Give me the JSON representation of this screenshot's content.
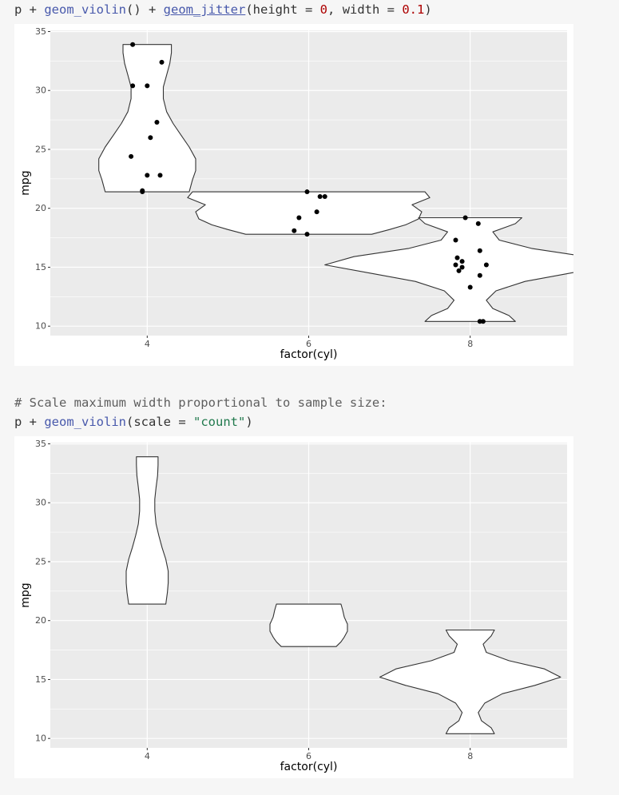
{
  "code1": {
    "p": "p",
    "plus1": " + ",
    "fn1": "geom_violin",
    "paren1": "()",
    "plus2": " + ",
    "fn2": "geom_jitter",
    "open": "(",
    "arg1": "height = ",
    "val1": "0",
    "comma": ", ",
    "arg2": "width = ",
    "val2": "0.1",
    "close": ")"
  },
  "code2": {
    "comment": "# Scale maximum width proportional to sample size:",
    "p": "p",
    "plus": " + ",
    "fn": "geom_violin",
    "open": "(",
    "arg": "scale = ",
    "val": "\"count\"",
    "close": ")"
  },
  "colors": {
    "panel": "#EBEBEB",
    "grid": "#FFFFFF",
    "violin_fill": "#FFFFFF",
    "violin_stroke": "#333333",
    "point": "#000000"
  },
  "chart_data": [
    {
      "type": "violin",
      "xlabel": "factor(cyl)",
      "ylabel": "mpg",
      "categories": [
        "4",
        "6",
        "8"
      ],
      "y_ticks": [
        "10",
        "15",
        "20",
        "25",
        "30",
        "35"
      ],
      "ylim": [
        9.2,
        35.1
      ],
      "grid": true,
      "violins": [
        {
          "category": "4",
          "ymin": 21.4,
          "ymax": 33.9,
          "profile": [
            [
              21.4,
              0.26
            ],
            [
              22.4,
              0.28
            ],
            [
              23.2,
              0.3
            ],
            [
              24.2,
              0.3
            ],
            [
              25.2,
              0.26
            ],
            [
              26.2,
              0.21
            ],
            [
              27.2,
              0.16
            ],
            [
              28.2,
              0.12
            ],
            [
              29.3,
              0.1
            ],
            [
              30.3,
              0.1
            ],
            [
              31.3,
              0.12
            ],
            [
              32.3,
              0.14
            ],
            [
              33.2,
              0.15
            ],
            [
              33.9,
              0.15
            ]
          ]
        },
        {
          "category": "6",
          "ymin": 17.8,
          "ymax": 21.4,
          "profile": [
            [
              17.8,
              0.39
            ],
            [
              18.2,
              0.5
            ],
            [
              18.6,
              0.6
            ],
            [
              19.1,
              0.68
            ],
            [
              19.7,
              0.7
            ],
            [
              20.3,
              0.64
            ],
            [
              20.9,
              0.75
            ],
            [
              21.4,
              0.72
            ]
          ]
        },
        {
          "category": "8",
          "ymin": 10.4,
          "ymax": 19.2,
          "profile": [
            [
              10.4,
              0.28
            ],
            [
              10.9,
              0.24
            ],
            [
              11.5,
              0.14
            ],
            [
              12.2,
              0.1
            ],
            [
              13.0,
              0.16
            ],
            [
              13.8,
              0.34
            ],
            [
              14.5,
              0.62
            ],
            [
              15.2,
              0.9
            ],
            [
              15.9,
              0.72
            ],
            [
              16.6,
              0.38
            ],
            [
              17.3,
              0.18
            ],
            [
              18.0,
              0.14
            ],
            [
              18.7,
              0.28
            ],
            [
              19.2,
              0.32
            ]
          ]
        }
      ],
      "points": [
        {
          "x": "4",
          "jx": -0.09,
          "y": 33.9
        },
        {
          "x": "4",
          "jx": 0.09,
          "y": 32.4
        },
        {
          "x": "4",
          "jx": -0.09,
          "y": 30.4
        },
        {
          "x": "4",
          "jx": 0.0,
          "y": 30.4
        },
        {
          "x": "4",
          "jx": 0.06,
          "y": 27.3
        },
        {
          "x": "4",
          "jx": 0.02,
          "y": 26.0
        },
        {
          "x": "4",
          "jx": -0.1,
          "y": 24.4
        },
        {
          "x": "4",
          "jx": 0.0,
          "y": 22.8
        },
        {
          "x": "4",
          "jx": 0.08,
          "y": 22.8
        },
        {
          "x": "4",
          "jx": -0.03,
          "y": 21.5
        },
        {
          "x": "4",
          "jx": -0.03,
          "y": 21.4
        },
        {
          "x": "6",
          "jx": -0.01,
          "y": 21.4
        },
        {
          "x": "6",
          "jx": 0.07,
          "y": 21.0
        },
        {
          "x": "6",
          "jx": 0.1,
          "y": 21.0
        },
        {
          "x": "6",
          "jx": 0.05,
          "y": 19.7
        },
        {
          "x": "6",
          "jx": -0.06,
          "y": 19.2
        },
        {
          "x": "6",
          "jx": -0.09,
          "y": 18.1
        },
        {
          "x": "6",
          "jx": -0.01,
          "y": 17.8
        },
        {
          "x": "8",
          "jx": -0.03,
          "y": 19.2
        },
        {
          "x": "8",
          "jx": 0.05,
          "y": 18.7
        },
        {
          "x": "8",
          "jx": -0.09,
          "y": 17.3
        },
        {
          "x": "8",
          "jx": 0.06,
          "y": 16.4
        },
        {
          "x": "8",
          "jx": -0.08,
          "y": 15.8
        },
        {
          "x": "8",
          "jx": -0.05,
          "y": 15.5
        },
        {
          "x": "8",
          "jx": -0.09,
          "y": 15.2
        },
        {
          "x": "8",
          "jx": 0.1,
          "y": 15.2
        },
        {
          "x": "8",
          "jx": -0.05,
          "y": 15.0
        },
        {
          "x": "8",
          "jx": -0.07,
          "y": 14.7
        },
        {
          "x": "8",
          "jx": 0.06,
          "y": 14.3
        },
        {
          "x": "8",
          "jx": 0.0,
          "y": 13.3
        },
        {
          "x": "8",
          "jx": 0.06,
          "y": 10.4
        },
        {
          "x": "8",
          "jx": 0.08,
          "y": 10.4
        }
      ]
    },
    {
      "type": "violin",
      "xlabel": "factor(cyl)",
      "ylabel": "mpg",
      "categories": [
        "4",
        "6",
        "8"
      ],
      "y_ticks": [
        "10",
        "15",
        "20",
        "25",
        "30",
        "35"
      ],
      "ylim": [
        9.2,
        35.1
      ],
      "grid": true,
      "violins": [
        {
          "category": "4",
          "ymin": 21.4,
          "ymax": 33.9,
          "profile": [
            [
              21.4,
              0.115
            ],
            [
              22.4,
              0.125
            ],
            [
              23.2,
              0.13
            ],
            [
              24.2,
              0.13
            ],
            [
              25.2,
              0.115
            ],
            [
              26.2,
              0.092
            ],
            [
              27.2,
              0.072
            ],
            [
              28.2,
              0.055
            ],
            [
              29.3,
              0.047
            ],
            [
              30.3,
              0.047
            ],
            [
              31.3,
              0.055
            ],
            [
              32.3,
              0.064
            ],
            [
              33.2,
              0.067
            ],
            [
              33.9,
              0.067
            ]
          ]
        },
        {
          "category": "6",
          "ymin": 17.8,
          "ymax": 21.4,
          "profile": [
            [
              17.8,
              0.17
            ],
            [
              18.2,
              0.2
            ],
            [
              18.6,
              0.22
            ],
            [
              19.1,
              0.24
            ],
            [
              19.7,
              0.24
            ],
            [
              20.3,
              0.22
            ],
            [
              20.9,
              0.21
            ],
            [
              21.4,
              0.2
            ]
          ]
        },
        {
          "category": "8",
          "ymin": 10.4,
          "ymax": 19.2,
          "profile": [
            [
              10.4,
              0.15
            ],
            [
              10.9,
              0.13
            ],
            [
              11.5,
              0.07
            ],
            [
              12.2,
              0.05
            ],
            [
              13.0,
              0.09
            ],
            [
              13.8,
              0.2
            ],
            [
              14.5,
              0.4
            ],
            [
              15.2,
              0.56
            ],
            [
              15.9,
              0.46
            ],
            [
              16.6,
              0.24
            ],
            [
              17.3,
              0.1
            ],
            [
              18.0,
              0.08
            ],
            [
              18.7,
              0.13
            ],
            [
              19.2,
              0.15
            ]
          ]
        }
      ],
      "points": []
    }
  ]
}
